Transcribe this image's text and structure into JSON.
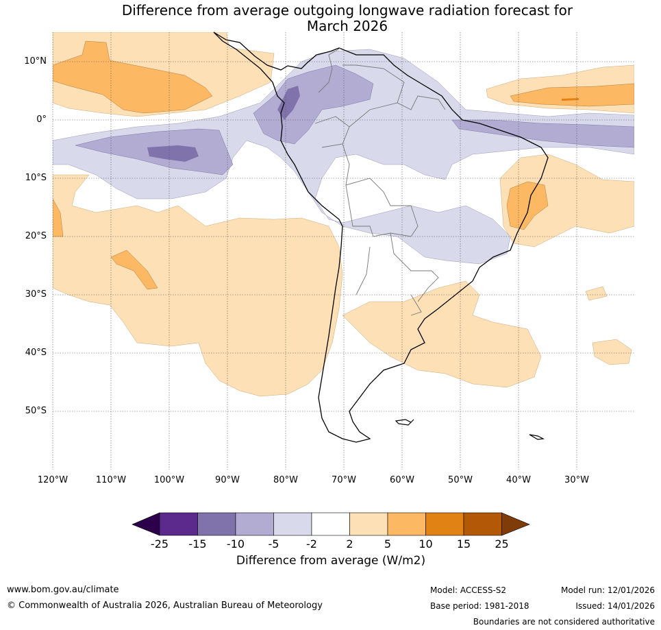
{
  "title_line1": "Difference from average outgoing longwave radiation forecast for",
  "title_line2": "March 2026",
  "lat_labels": [
    "10°N",
    "0°",
    "10°S",
    "20°S",
    "30°S",
    "40°S",
    "50°S"
  ],
  "lon_labels": [
    "120°W",
    "110°W",
    "100°W",
    "90°W",
    "80°W",
    "70°W",
    "60°W",
    "50°W",
    "40°W",
    "30°W"
  ],
  "colorbar": {
    "ticks": [
      "-25",
      "-15",
      "-10",
      "-5",
      "-2",
      "2",
      "5",
      "10",
      "15",
      "25"
    ],
    "label": "Difference from average (W/m2)",
    "colors": [
      "#2d004b",
      "#5c2a8c",
      "#8073ac",
      "#b2abd2",
      "#d8daeb",
      "#ffffff",
      "#fee0b6",
      "#fdb863",
      "#e08214",
      "#b35806",
      "#7f3b08"
    ]
  },
  "footer": {
    "website": "www.bom.gov.au/climate",
    "copyright": "© Commonwealth of Australia 2026, Australian Bureau of Meteorology",
    "model": "Model: ACCESS-S2",
    "base_period": "Base period: 1981-2018",
    "model_run": "Model run: 12/01/2026",
    "issued": "Issued: 14/01/2026",
    "disclaimer": "Boundaries are not considered authoritative"
  }
}
